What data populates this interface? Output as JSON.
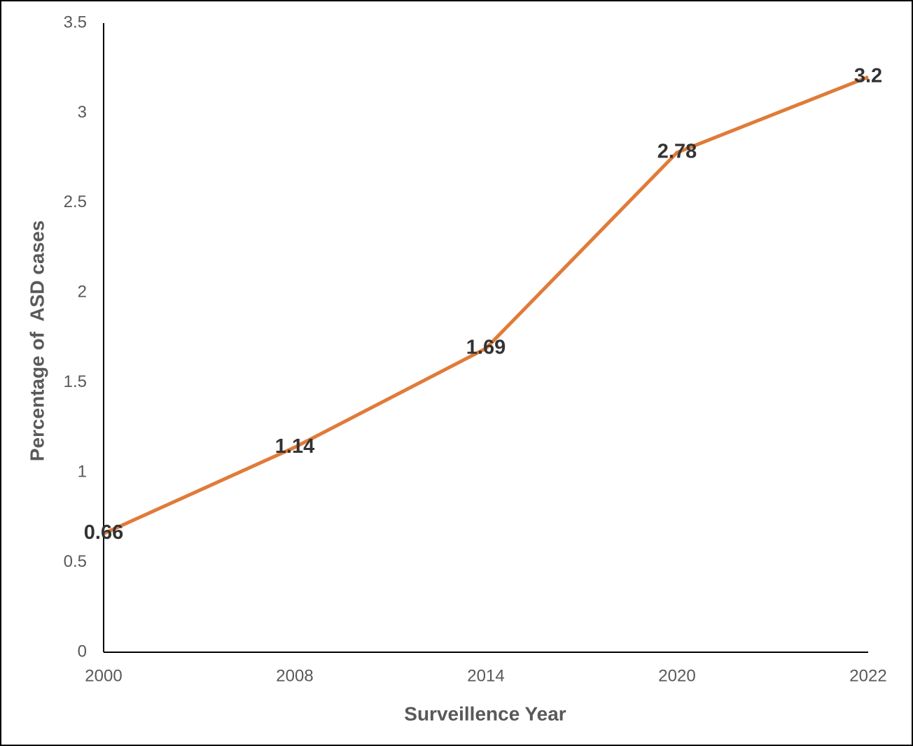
{
  "chart_data": {
    "type": "line",
    "x_label": "Surveillence Year",
    "y_label": "Percentage of  ASD cases",
    "categories": [
      "2000",
      "2008",
      "2014",
      "2020",
      "2022"
    ],
    "values": [
      0.66,
      1.14,
      1.69,
      2.78,
      3.2
    ],
    "color": "#e07b39",
    "ylim": [
      0,
      3.5
    ],
    "yticks": [
      0,
      0.5,
      1,
      1.5,
      2,
      2.5,
      3,
      3.5
    ],
    "grid": false
  }
}
